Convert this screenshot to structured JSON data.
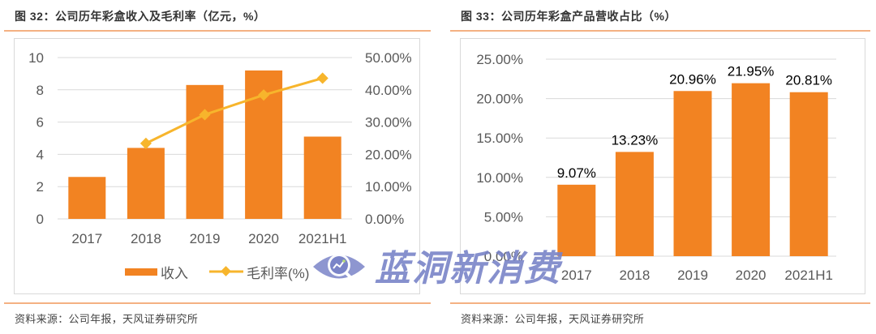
{
  "left": {
    "title": "图 32：公司历年彩盒收入及毛利率（亿元，%）",
    "source": "资料来源：公司年报，天风证券研究所",
    "legend": {
      "bar_label": "收入",
      "line_label": "毛利率(%)"
    },
    "y_left_ticks": [
      "0",
      "2",
      "4",
      "6",
      "8",
      "10"
    ],
    "y_right_ticks": [
      "0.00%",
      "10.00%",
      "20.00%",
      "30.00%",
      "40.00%",
      "50.00%"
    ]
  },
  "right": {
    "title": "图 33：公司历年彩盒产品营收占比（%）",
    "source": "资料来源：公司年报，天风证券研究所",
    "y_ticks": [
      "0.00%",
      "5.00%",
      "10.00%",
      "15.00%",
      "20.00%",
      "25.00%"
    ],
    "data_labels": [
      "9.07%",
      "13.23%",
      "20.96%",
      "21.95%",
      "20.81%"
    ]
  },
  "watermark": {
    "text": "蓝洞新消费",
    "icon": "eye-magnifier-chart-icon"
  },
  "colors": {
    "bar": "#f28322",
    "line": "#f7b52c",
    "grid": "#d9d9d9",
    "rule": "#f4b183",
    "watermark": "#7a84c8"
  },
  "chart_data": [
    {
      "type": "bar",
      "title": "图 32：公司历年彩盒收入及毛利率（亿元，%）",
      "categories": [
        "2017",
        "2018",
        "2019",
        "2020",
        "2021H1"
      ],
      "series": [
        {
          "name": "收入",
          "type": "bar",
          "axis": "left",
          "values": [
            2.6,
            4.4,
            8.3,
            9.2,
            5.1
          ]
        },
        {
          "name": "毛利率(%)",
          "type": "line",
          "axis": "right",
          "values": [
            null,
            23.4,
            32.3,
            38.4,
            43.6
          ]
        }
      ],
      "xlabel": "",
      "ylabel": "亿元",
      "y2label": "%",
      "ylim": [
        0,
        10
      ],
      "y2lim": [
        0,
        50
      ],
      "grid": true,
      "legend_position": "bottom"
    },
    {
      "type": "bar",
      "title": "图 33：公司历年彩盒产品营收占比（%）",
      "categories": [
        "2017",
        "2018",
        "2019",
        "2020",
        "2021H1"
      ],
      "values": [
        9.07,
        13.23,
        20.96,
        21.95,
        20.81
      ],
      "xlabel": "",
      "ylabel": "%",
      "ylim": [
        0,
        25
      ],
      "grid": true,
      "data_labels": true
    }
  ]
}
